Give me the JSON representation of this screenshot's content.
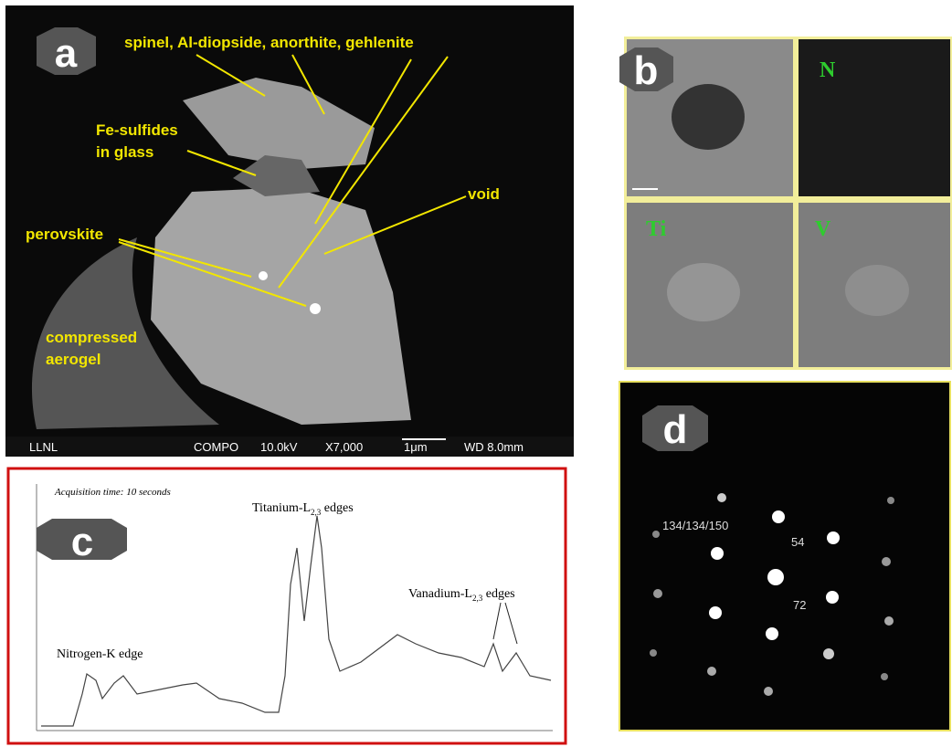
{
  "panel_a": {
    "label": "a",
    "annotations": [
      {
        "lines": [
          "spinel, Al-diopside, anorthite, gehlenite"
        ]
      },
      {
        "lines": [
          "Fe-sulfides",
          "in glass"
        ]
      },
      {
        "lines": [
          "void"
        ]
      },
      {
        "lines": [
          "perovskite"
        ]
      },
      {
        "lines": [
          "compressed",
          "aerogel"
        ]
      }
    ],
    "footer": [
      "LLNL",
      "COMPO",
      "10.0kV",
      "X7,000",
      "1μm",
      "WD 8.0mm"
    ]
  },
  "panel_b": {
    "label": "b",
    "maps": [
      "N",
      "Ti",
      "V"
    ]
  },
  "panel_c": {
    "label": "c",
    "acquisition": "Acquisition time:  10 seconds",
    "edges": [
      {
        "text": "Titanium-L",
        "sub": "2,3",
        "after": " edges"
      },
      {
        "text": "Vanadium-L",
        "sub": "2,3",
        "after": " edges"
      },
      {
        "text": "Nitrogen-K edge"
      }
    ]
  },
  "panel_d": {
    "label": "d",
    "indices": [
      "134/134/150",
      "54",
      "72"
    ]
  }
}
